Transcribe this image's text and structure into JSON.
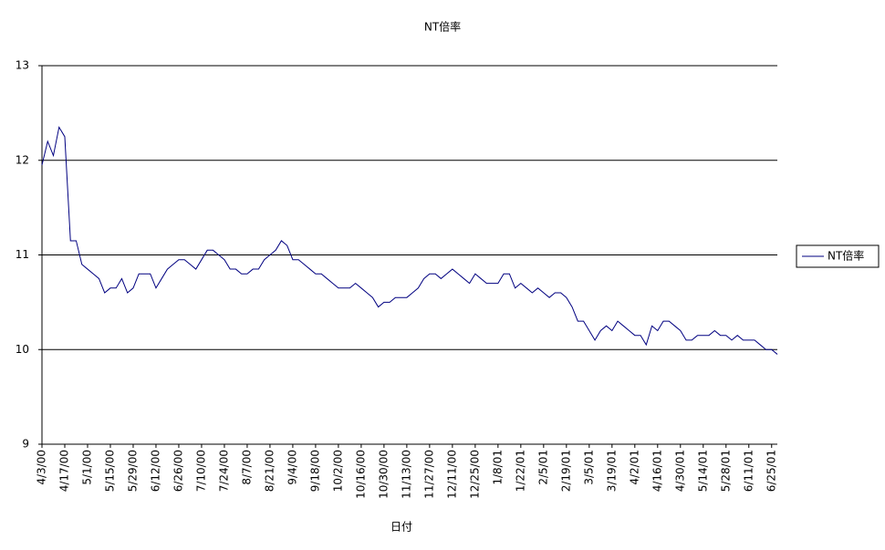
{
  "chart_data": {
    "type": "line",
    "title": "NT倍率",
    "x_label": "日付",
    "categories": [
      "4/3/00",
      null,
      null,
      null,
      "4/17/00",
      null,
      null,
      null,
      "5/1/00",
      null,
      null,
      null,
      "5/15/00",
      null,
      null,
      null,
      "5/29/00",
      null,
      null,
      null,
      "6/12/00",
      null,
      null,
      null,
      "6/26/00",
      null,
      null,
      null,
      "7/10/00",
      null,
      null,
      null,
      "7/24/00",
      null,
      null,
      null,
      "8/7/00",
      null,
      null,
      null,
      "8/21/00",
      null,
      null,
      null,
      "9/4/00",
      null,
      null,
      null,
      "9/18/00",
      null,
      null,
      null,
      "10/2/00",
      null,
      null,
      null,
      "10/16/00",
      null,
      null,
      null,
      "10/30/00",
      null,
      null,
      null,
      "11/13/00",
      null,
      null,
      null,
      "11/27/00",
      null,
      null,
      null,
      "12/11/00",
      null,
      null,
      null,
      "12/25/00",
      null,
      null,
      null,
      "1/8/01",
      null,
      null,
      null,
      "1/22/01",
      null,
      null,
      null,
      "2/5/01",
      null,
      null,
      null,
      "2/19/01",
      null,
      null,
      null,
      "3/5/01",
      null,
      null,
      null,
      "3/19/01",
      null,
      null,
      null,
      "4/2/01",
      null,
      null,
      null,
      "4/16/01",
      null,
      null,
      null,
      "4/30/01",
      null,
      null,
      null,
      "5/14/01",
      null,
      null,
      null,
      "5/28/01",
      null,
      null,
      null,
      "6/11/01",
      null,
      null,
      null,
      "6/25/01",
      null
    ],
    "series": [
      {
        "name": "NT倍率",
        "color": "#000080",
        "values": [
          11.95,
          12.2,
          12.05,
          12.35,
          12.25,
          11.15,
          11.15,
          10.9,
          10.85,
          10.8,
          10.75,
          10.6,
          10.65,
          10.65,
          10.75,
          10.6,
          10.65,
          10.8,
          10.8,
          10.8,
          10.65,
          10.75,
          10.85,
          10.9,
          10.95,
          10.95,
          10.9,
          10.85,
          10.95,
          11.05,
          11.05,
          11.0,
          10.95,
          10.85,
          10.85,
          10.8,
          10.8,
          10.85,
          10.85,
          10.95,
          11.0,
          11.05,
          11.15,
          11.1,
          10.95,
          10.95,
          10.9,
          10.85,
          10.8,
          10.8,
          10.75,
          10.7,
          10.65,
          10.65,
          10.65,
          10.7,
          10.65,
          10.6,
          10.55,
          10.45,
          10.5,
          10.5,
          10.55,
          10.55,
          10.55,
          10.6,
          10.65,
          10.75,
          10.8,
          10.8,
          10.75,
          10.8,
          10.85,
          10.8,
          10.75,
          10.7,
          10.8,
          10.75,
          10.7,
          10.7,
          10.7,
          10.8,
          10.8,
          10.65,
          10.7,
          10.65,
          10.6,
          10.65,
          10.6,
          10.55,
          10.6,
          10.6,
          10.55,
          10.45,
          10.3,
          10.3,
          10.2,
          10.1,
          10.2,
          10.25,
          10.2,
          10.3,
          10.25,
          10.2,
          10.15,
          10.15,
          10.05,
          10.25,
          10.2,
          10.3,
          10.3,
          10.25,
          10.2,
          10.1,
          10.1,
          10.15,
          10.15,
          10.15,
          10.2,
          10.15,
          10.15,
          10.1,
          10.15,
          10.1,
          10.1,
          10.1,
          10.05,
          10.0,
          10.0,
          9.95
        ]
      }
    ],
    "ylim": [
      9,
      13
    ],
    "yticks": [
      9,
      10,
      11,
      12,
      13
    ],
    "grid": true,
    "legend": "right"
  }
}
